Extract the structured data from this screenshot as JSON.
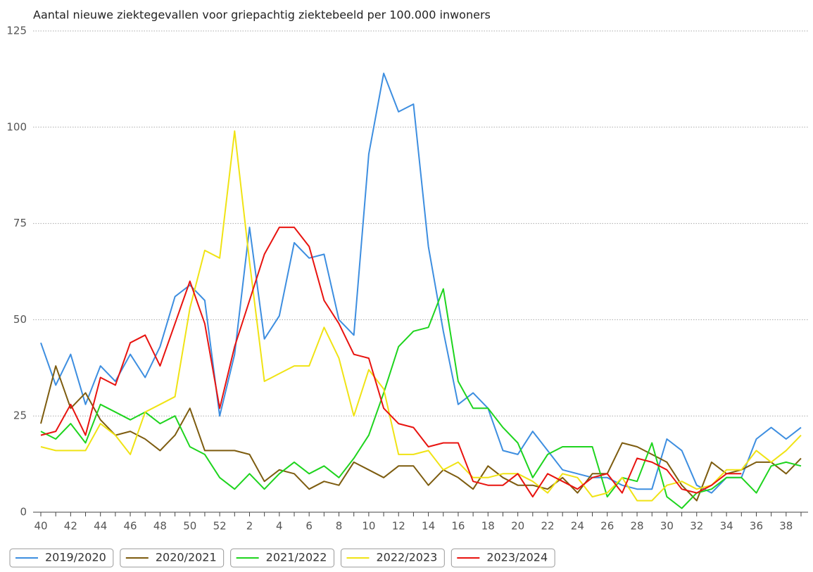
{
  "chart_data": {
    "type": "line",
    "title": "Aantal nieuwe ziektegevallen voor griepachtig ziektebeeld per 100.000 inwoners",
    "categories": [
      "40",
      null,
      "42",
      null,
      "44",
      null,
      "46",
      null,
      "48",
      null,
      "50",
      null,
      "52",
      null,
      "2",
      null,
      "4",
      null,
      "6",
      null,
      "8",
      null,
      "10",
      null,
      "12",
      null,
      "14",
      null,
      "16",
      null,
      "18",
      null,
      "20",
      null,
      "22",
      null,
      "24",
      null,
      "26",
      null,
      "28",
      null,
      "30",
      null,
      "32",
      null,
      "34",
      null,
      "36",
      null,
      "38",
      null
    ],
    "ylim": [
      0,
      125
    ],
    "yticks": [
      0,
      25,
      50,
      75,
      100,
      125
    ],
    "grid": true,
    "legend": "bottom",
    "series": [
      {
        "name": "2019/2020",
        "color": "#3d8ee0",
        "values": [
          44,
          33,
          41,
          28,
          38,
          34,
          41,
          35,
          43,
          56,
          59,
          55,
          25,
          41,
          74,
          45,
          51,
          70,
          66,
          67,
          50,
          46,
          93,
          114,
          104,
          106,
          69,
          47,
          28,
          31,
          27,
          16,
          15,
          21,
          16,
          11,
          10,
          9,
          9,
          7,
          6,
          6,
          19,
          16,
          7,
          5,
          9,
          9,
          19,
          22,
          19,
          22
        ]
      },
      {
        "name": "2020/2021",
        "color": "#7d5c0f",
        "values": [
          23,
          38,
          27,
          31,
          24,
          20,
          21,
          19,
          16,
          20,
          27,
          16,
          16,
          16,
          15,
          8,
          11,
          10,
          6,
          8,
          7,
          13,
          11,
          9,
          12,
          12,
          7,
          11,
          9,
          6,
          12,
          9,
          7,
          7,
          6,
          9,
          5,
          10,
          10,
          18,
          17,
          15,
          13,
          7,
          3,
          13,
          10,
          11,
          13,
          13,
          10,
          14
        ]
      },
      {
        "name": "2021/2022",
        "color": "#1ed41e",
        "values": [
          21,
          19,
          23,
          18,
          28,
          26,
          24,
          26,
          23,
          25,
          17,
          15,
          9,
          6,
          10,
          6,
          10,
          13,
          10,
          12,
          9,
          14,
          20,
          31,
          43,
          47,
          48,
          58,
          34,
          27,
          27,
          22,
          18,
          9,
          15,
          17,
          17,
          17,
          4,
          9,
          8,
          18,
          4,
          1,
          5,
          6,
          9,
          9,
          5,
          12,
          13,
          12
        ]
      },
      {
        "name": "2022/2023",
        "color": "#f0e314",
        "values": [
          17,
          16,
          16,
          16,
          23,
          20,
          15,
          26,
          28,
          30,
          53,
          68,
          66,
          99,
          65,
          34,
          36,
          38,
          38,
          48,
          40,
          25,
          37,
          32,
          15,
          15,
          16,
          11,
          13,
          9,
          9,
          10,
          10,
          8,
          5,
          10,
          9,
          4,
          5,
          9,
          3,
          3,
          7,
          8,
          6,
          7,
          11,
          11,
          16,
          13,
          16,
          20
        ]
      },
      {
        "name": "2023/2024",
        "color": "#e8130f",
        "values": [
          20,
          21,
          28,
          20,
          35,
          33,
          44,
          46,
          38,
          49,
          60,
          49,
          27,
          43,
          55,
          67,
          74,
          74,
          69,
          55,
          49,
          41,
          40,
          27,
          23,
          22,
          17,
          18,
          18,
          8,
          7,
          7,
          10,
          4,
          10,
          8,
          6,
          9,
          10,
          5,
          14,
          13,
          11,
          6,
          5,
          7,
          10,
          10,
          null,
          null,
          null,
          null
        ]
      }
    ]
  }
}
